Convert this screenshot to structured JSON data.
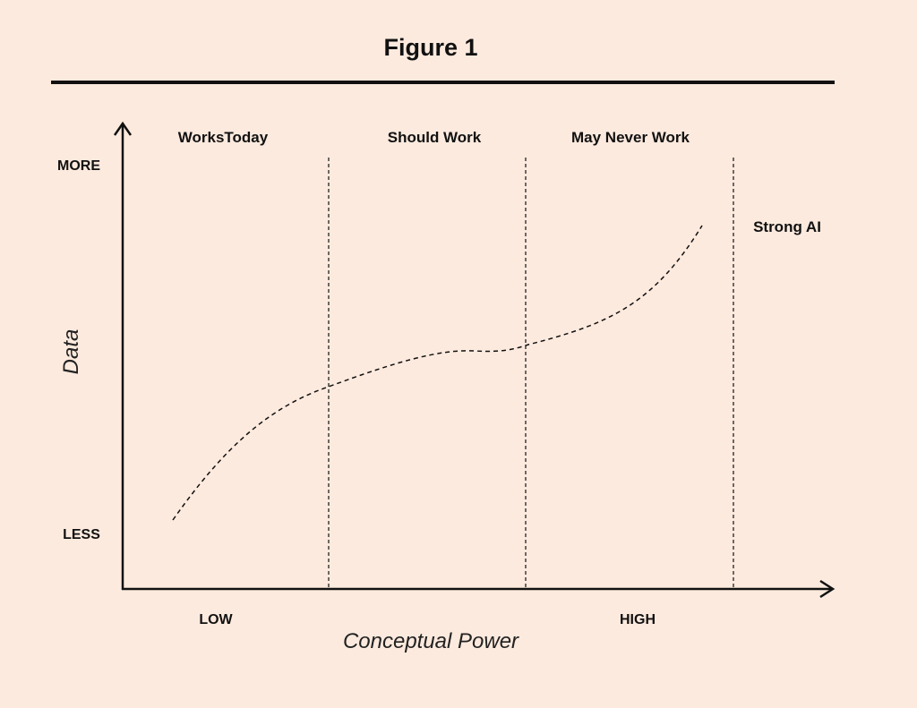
{
  "figure": {
    "title": "Figure 1"
  },
  "regions": [
    {
      "label": "WorksToday"
    },
    {
      "label": "Should Work"
    },
    {
      "label": "May Never Work"
    }
  ],
  "end_label": "Strong AI",
  "axes": {
    "x": {
      "label": "Conceptual Power",
      "low": "LOW",
      "high": "HIGH"
    },
    "y": {
      "label": "Data",
      "high": "MORE",
      "low": "LESS"
    }
  },
  "colors": {
    "background": "#fdeade",
    "ink": "#111111"
  }
}
